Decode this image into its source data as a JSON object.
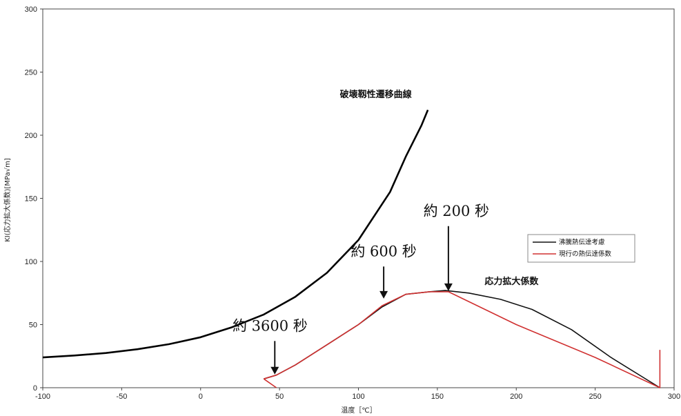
{
  "chart_data": {
    "type": "line",
    "title": "",
    "xlabel": "温度［℃］",
    "ylabel": "KI(応力拡大係数)[MPa√m]",
    "xlim": [
      -100,
      300
    ],
    "ylim": [
      0,
      300
    ],
    "xticks": [
      -100,
      -50,
      0,
      50,
      100,
      150,
      200,
      250,
      300
    ],
    "yticks": [
      0,
      50,
      100,
      150,
      200,
      250,
      300
    ],
    "grid": false,
    "legend_position": "right",
    "series": [
      {
        "name": "",
        "color": "#000000",
        "x": [
          -100,
          -80,
          -60,
          -40,
          -20,
          0,
          20,
          40,
          60,
          80,
          100,
          120,
          130,
          140,
          144
        ],
        "y": [
          24,
          25.5,
          27.5,
          30.5,
          34.5,
          40,
          48,
          58,
          72,
          91,
          117,
          155,
          183,
          208,
          220
        ]
      },
      {
        "name": "沸騰熱伝達考慮",
        "color": "#111111",
        "x": [
          40,
          48,
          60,
          80,
          100,
          115,
          130,
          145,
          155,
          170,
          190,
          210,
          235,
          260,
          291
        ],
        "y": [
          7,
          10,
          18,
          34,
          50,
          64,
          74,
          76,
          77,
          75,
          70,
          62,
          46,
          24,
          0
        ]
      },
      {
        "name": "現行の熱伝達係数",
        "color": "#d03030",
        "x": [
          40,
          48,
          60,
          80,
          100,
          115,
          130,
          145,
          157,
          200,
          250,
          291,
          291,
          291
        ],
        "y": [
          7,
          10,
          18,
          34,
          50,
          65,
          74,
          76,
          76,
          50,
          24,
          0,
          0,
          30
        ]
      },
      {
        "name": "",
        "color": "#d03030",
        "x": [
          40,
          48
        ],
        "y": [
          7,
          0
        ]
      }
    ],
    "annotations": [
      {
        "text": "破壊靱性遷移曲線",
        "x": 111,
        "y": 230
      },
      {
        "text": "応力拡大係数",
        "x": 197,
        "y": 82
      },
      {
        "text": "約 200 秒",
        "x": 162,
        "y": 136
      },
      {
        "text": "約 600 秒",
        "x": 116,
        "y": 104
      },
      {
        "text": "約 3600 秒",
        "x": 44,
        "y": 45
      }
    ],
    "arrows": [
      {
        "label": "約 200 秒",
        "x": 157,
        "y_from": 128,
        "y_to": 76
      },
      {
        "label": "約 600 秒",
        "x": 116,
        "y_from": 96,
        "y_to": 70
      },
      {
        "label": "約 3600 秒",
        "x": 47,
        "y_from": 37,
        "y_to": 10
      }
    ]
  }
}
